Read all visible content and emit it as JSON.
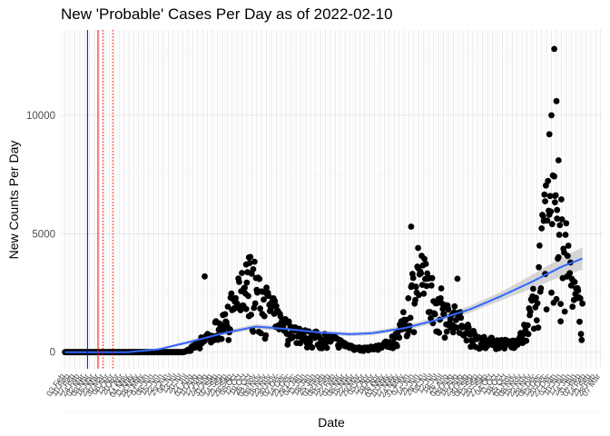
{
  "chart_data": {
    "type": "scatter",
    "title": "New 'Probable' Cases Per Day as of 2022-02-10",
    "xlabel": "Date",
    "ylabel": "New Counts Per Day",
    "x_range": [
      "2020-01-28",
      "2022-03-10"
    ],
    "ylim": [
      -700,
      13600
    ],
    "y_ticks": [
      0,
      5000,
      10000
    ],
    "x_tick_labels": [
      "03 Feb",
      "10 Feb",
      "17 Feb",
      "24 Feb",
      "02 Mar",
      "09 Mar",
      "16 Mar",
      "23 Mar",
      "30 Mar",
      "06 Apr",
      "13 Apr",
      "20 Apr",
      "27 Apr",
      "04 May",
      "11 May",
      "18 May",
      "25 May",
      "01 Jun",
      "08 Jun",
      "15 Jun",
      "22 Jun",
      "29 Jun",
      "06 Jul",
      "13 Jul",
      "20 Jul",
      "27 Jul",
      "03 Aug",
      "10 Aug",
      "17 Aug",
      "24 Aug",
      "31 Aug",
      "07 Sep",
      "14 Sep",
      "21 Sep",
      "28 Sep",
      "05 Oct",
      "12 Oct",
      "19 Oct",
      "26 Oct",
      "02 Nov",
      "09 Nov",
      "16 Nov",
      "23 Nov",
      "30 Nov",
      "07 Dec",
      "14 Dec",
      "21 Dec",
      "28 Dec",
      "04 Jan",
      "11 Jan",
      "18 Jan",
      "25 Jan",
      "01 Feb",
      "08 Feb",
      "15 Feb",
      "22 Feb",
      "01 Mar",
      "08 Mar",
      "15 Mar",
      "22 Mar",
      "29 Mar",
      "05 Apr",
      "12 Apr",
      "19 Apr",
      "26 Apr",
      "03 May",
      "10 May",
      "17 May",
      "24 May",
      "31 May",
      "07 Jun",
      "14 Jun",
      "21 Jun",
      "28 Jun",
      "05 Jul",
      "12 Jul",
      "19 Jul",
      "26 Jul",
      "02 Aug",
      "09 Aug",
      "16 Aug",
      "23 Aug",
      "30 Aug",
      "06 Sep",
      "13 Sep",
      "20 Sep",
      "27 Sep",
      "04 Oct",
      "11 Oct",
      "18 Oct",
      "25 Oct",
      "01 Nov",
      "08 Nov",
      "15 Nov",
      "22 Nov",
      "29 Nov",
      "06 Dec",
      "13 Dec",
      "20 Dec",
      "27 Dec",
      "03 Jan",
      "10 Jan",
      "17 Jan",
      "24 Jan",
      "31 Jan",
      "07 Feb",
      "14 Feb",
      "21 Feb",
      "28 Feb",
      "07 Mar"
    ],
    "x_tick_start": "2020-02-03",
    "reference_lines": [
      {
        "date": "2020-03-06",
        "color": "#0000ff",
        "style": "solid"
      },
      {
        "date": "2020-03-21",
        "color": "#ff0000",
        "style": "solid"
      },
      {
        "date": "2020-03-28",
        "color": "#ff0000",
        "style": "dotted"
      },
      {
        "date": "2020-04-11",
        "color": "#ff0000",
        "style": "dotted"
      }
    ],
    "keypoints": [
      [
        "2020-02-03",
        0
      ],
      [
        "2020-07-20",
        0
      ],
      [
        "2020-07-25",
        50
      ],
      [
        "2020-08-05",
        250
      ],
      [
        "2020-08-15",
        500
      ],
      [
        "2020-09-01",
        900
      ],
      [
        "2020-09-15",
        1500
      ],
      [
        "2020-10-01",
        2100
      ],
      [
        "2020-10-15",
        2800
      ],
      [
        "2020-10-25",
        3300
      ],
      [
        "2020-11-05",
        2700
      ],
      [
        "2020-11-20",
        2000
      ],
      [
        "2020-12-05",
        1400
      ],
      [
        "2020-12-20",
        1000
      ],
      [
        "2021-01-10",
        750
      ],
      [
        "2021-02-01",
        650
      ],
      [
        "2021-02-20",
        550
      ],
      [
        "2021-03-10",
        300
      ],
      [
        "2021-04-01",
        150
      ],
      [
        "2021-04-20",
        200
      ],
      [
        "2021-05-10",
        400
      ],
      [
        "2021-05-25",
        900
      ],
      [
        "2021-06-05",
        1800
      ],
      [
        "2021-06-15",
        3200
      ],
      [
        "2021-06-25",
        3400
      ],
      [
        "2021-07-05",
        2800
      ],
      [
        "2021-07-20",
        2200
      ],
      [
        "2021-08-05",
        1700
      ],
      [
        "2021-08-20",
        1300
      ],
      [
        "2021-09-01",
        900
      ],
      [
        "2021-09-10",
        600
      ],
      [
        "2021-10-01",
        480
      ],
      [
        "2021-10-20",
        420
      ],
      [
        "2021-11-05",
        400
      ],
      [
        "2021-11-15",
        700
      ],
      [
        "2021-11-25",
        1500
      ],
      [
        "2021-12-05",
        2800
      ],
      [
        "2021-12-15",
        4800
      ],
      [
        "2021-12-22",
        6000
      ],
      [
        "2021-12-30",
        6500
      ],
      [
        "2022-01-08",
        5500
      ],
      [
        "2022-01-20",
        3800
      ],
      [
        "2022-01-30",
        2400
      ],
      [
        "2022-02-09",
        1700
      ]
    ],
    "outliers": [
      [
        "2020-08-20",
        3200
      ],
      [
        "2020-10-22",
        4000
      ],
      [
        "2020-10-18",
        3700
      ],
      [
        "2020-10-28",
        3500
      ],
      [
        "2021-06-10",
        5300
      ],
      [
        "2021-06-20",
        4400
      ],
      [
        "2021-08-15",
        3100
      ],
      [
        "2021-12-18",
        3300
      ],
      [
        "2021-12-24",
        9200
      ],
      [
        "2021-12-27",
        10000
      ],
      [
        "2021-12-31",
        12800
      ],
      [
        "2022-01-03",
        10600
      ],
      [
        "2022-01-06",
        8100
      ],
      [
        "2022-01-01",
        6600
      ],
      [
        "2022-01-04",
        6000
      ],
      [
        "2022-01-09",
        1300
      ]
    ],
    "trend": [
      [
        "2020-02-03",
        0
      ],
      [
        "2020-05-01",
        0
      ],
      [
        "2020-06-15",
        120
      ],
      [
        "2020-08-01",
        450
      ],
      [
        "2020-09-15",
        800
      ],
      [
        "2020-11-01",
        1080
      ],
      [
        "2020-12-15",
        980
      ],
      [
        "2021-02-01",
        830
      ],
      [
        "2021-03-15",
        760
      ],
      [
        "2021-04-15",
        800
      ],
      [
        "2021-06-01",
        1020
      ],
      [
        "2021-07-15",
        1350
      ],
      [
        "2021-09-01",
        1800
      ],
      [
        "2021-10-15",
        2350
      ],
      [
        "2021-12-01",
        3000
      ],
      [
        "2022-01-10",
        3600
      ],
      [
        "2022-02-09",
        3950
      ]
    ],
    "colors": {
      "points": "#000000",
      "trend": "#3366ff",
      "band": "#bdbdbd",
      "panel": "#ffffff",
      "grid": "#ebebeb"
    },
    "grid": true,
    "legend": "none"
  }
}
